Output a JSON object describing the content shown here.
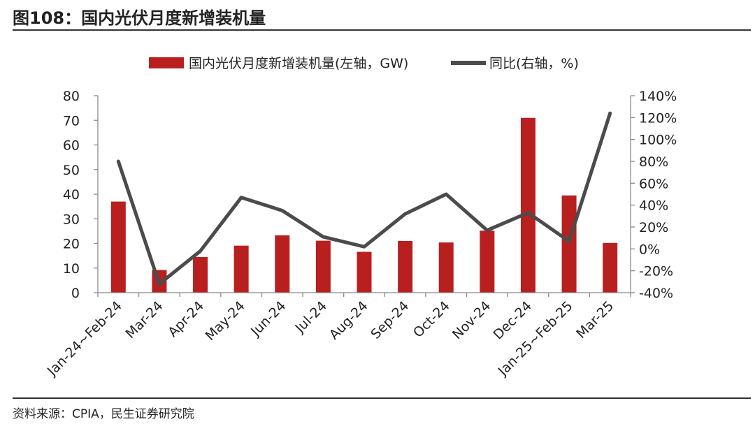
{
  "header": {
    "title": "图108：国内光伏月度新增装机量"
  },
  "footer": {
    "source": "资料来源：CPIA，民生证券研究院"
  },
  "chart_data": {
    "type": "bar",
    "title": "",
    "categories": [
      "Jan-24~Feb-24",
      "Mar-24",
      "Apr-24",
      "May-24",
      "Jun-24",
      "Jul-24",
      "Aug-24",
      "Sep-24",
      "Oct-24",
      "Nov-24",
      "Dec-24",
      "Jan-25~Feb-25",
      "Mar-25"
    ],
    "series": [
      {
        "name": "国内光伏月度新增装机量(左轴，GW)",
        "type": "bar",
        "axis": "left",
        "color": "#b8201f",
        "values": [
          37.0,
          9.2,
          14.5,
          19.1,
          23.3,
          21.1,
          16.6,
          21.0,
          20.4,
          25.2,
          71.0,
          39.5,
          20.2
        ]
      },
      {
        "name": "同比(右轴，%)",
        "type": "line",
        "axis": "right",
        "color": "#4b4b4b",
        "values": [
          80,
          -32,
          -2,
          47,
          35,
          11,
          2,
          32,
          50,
          17,
          33,
          7,
          124
        ]
      }
    ],
    "y_left": {
      "range": [
        0,
        80
      ],
      "ticks": [
        0,
        10,
        20,
        30,
        40,
        50,
        60,
        70,
        80
      ],
      "tick_labels": [
        "0",
        "10",
        "20",
        "30",
        "40",
        "50",
        "60",
        "70",
        "80"
      ]
    },
    "y_right": {
      "range": [
        -40,
        140
      ],
      "ticks": [
        -40,
        -20,
        0,
        20,
        40,
        60,
        80,
        100,
        120,
        140
      ],
      "tick_labels": [
        "-40%",
        "-20%",
        "0%",
        "20%",
        "40%",
        "60%",
        "80%",
        "100%",
        "120%",
        "140%"
      ]
    },
    "grid": false,
    "legend_position": "top-center"
  }
}
